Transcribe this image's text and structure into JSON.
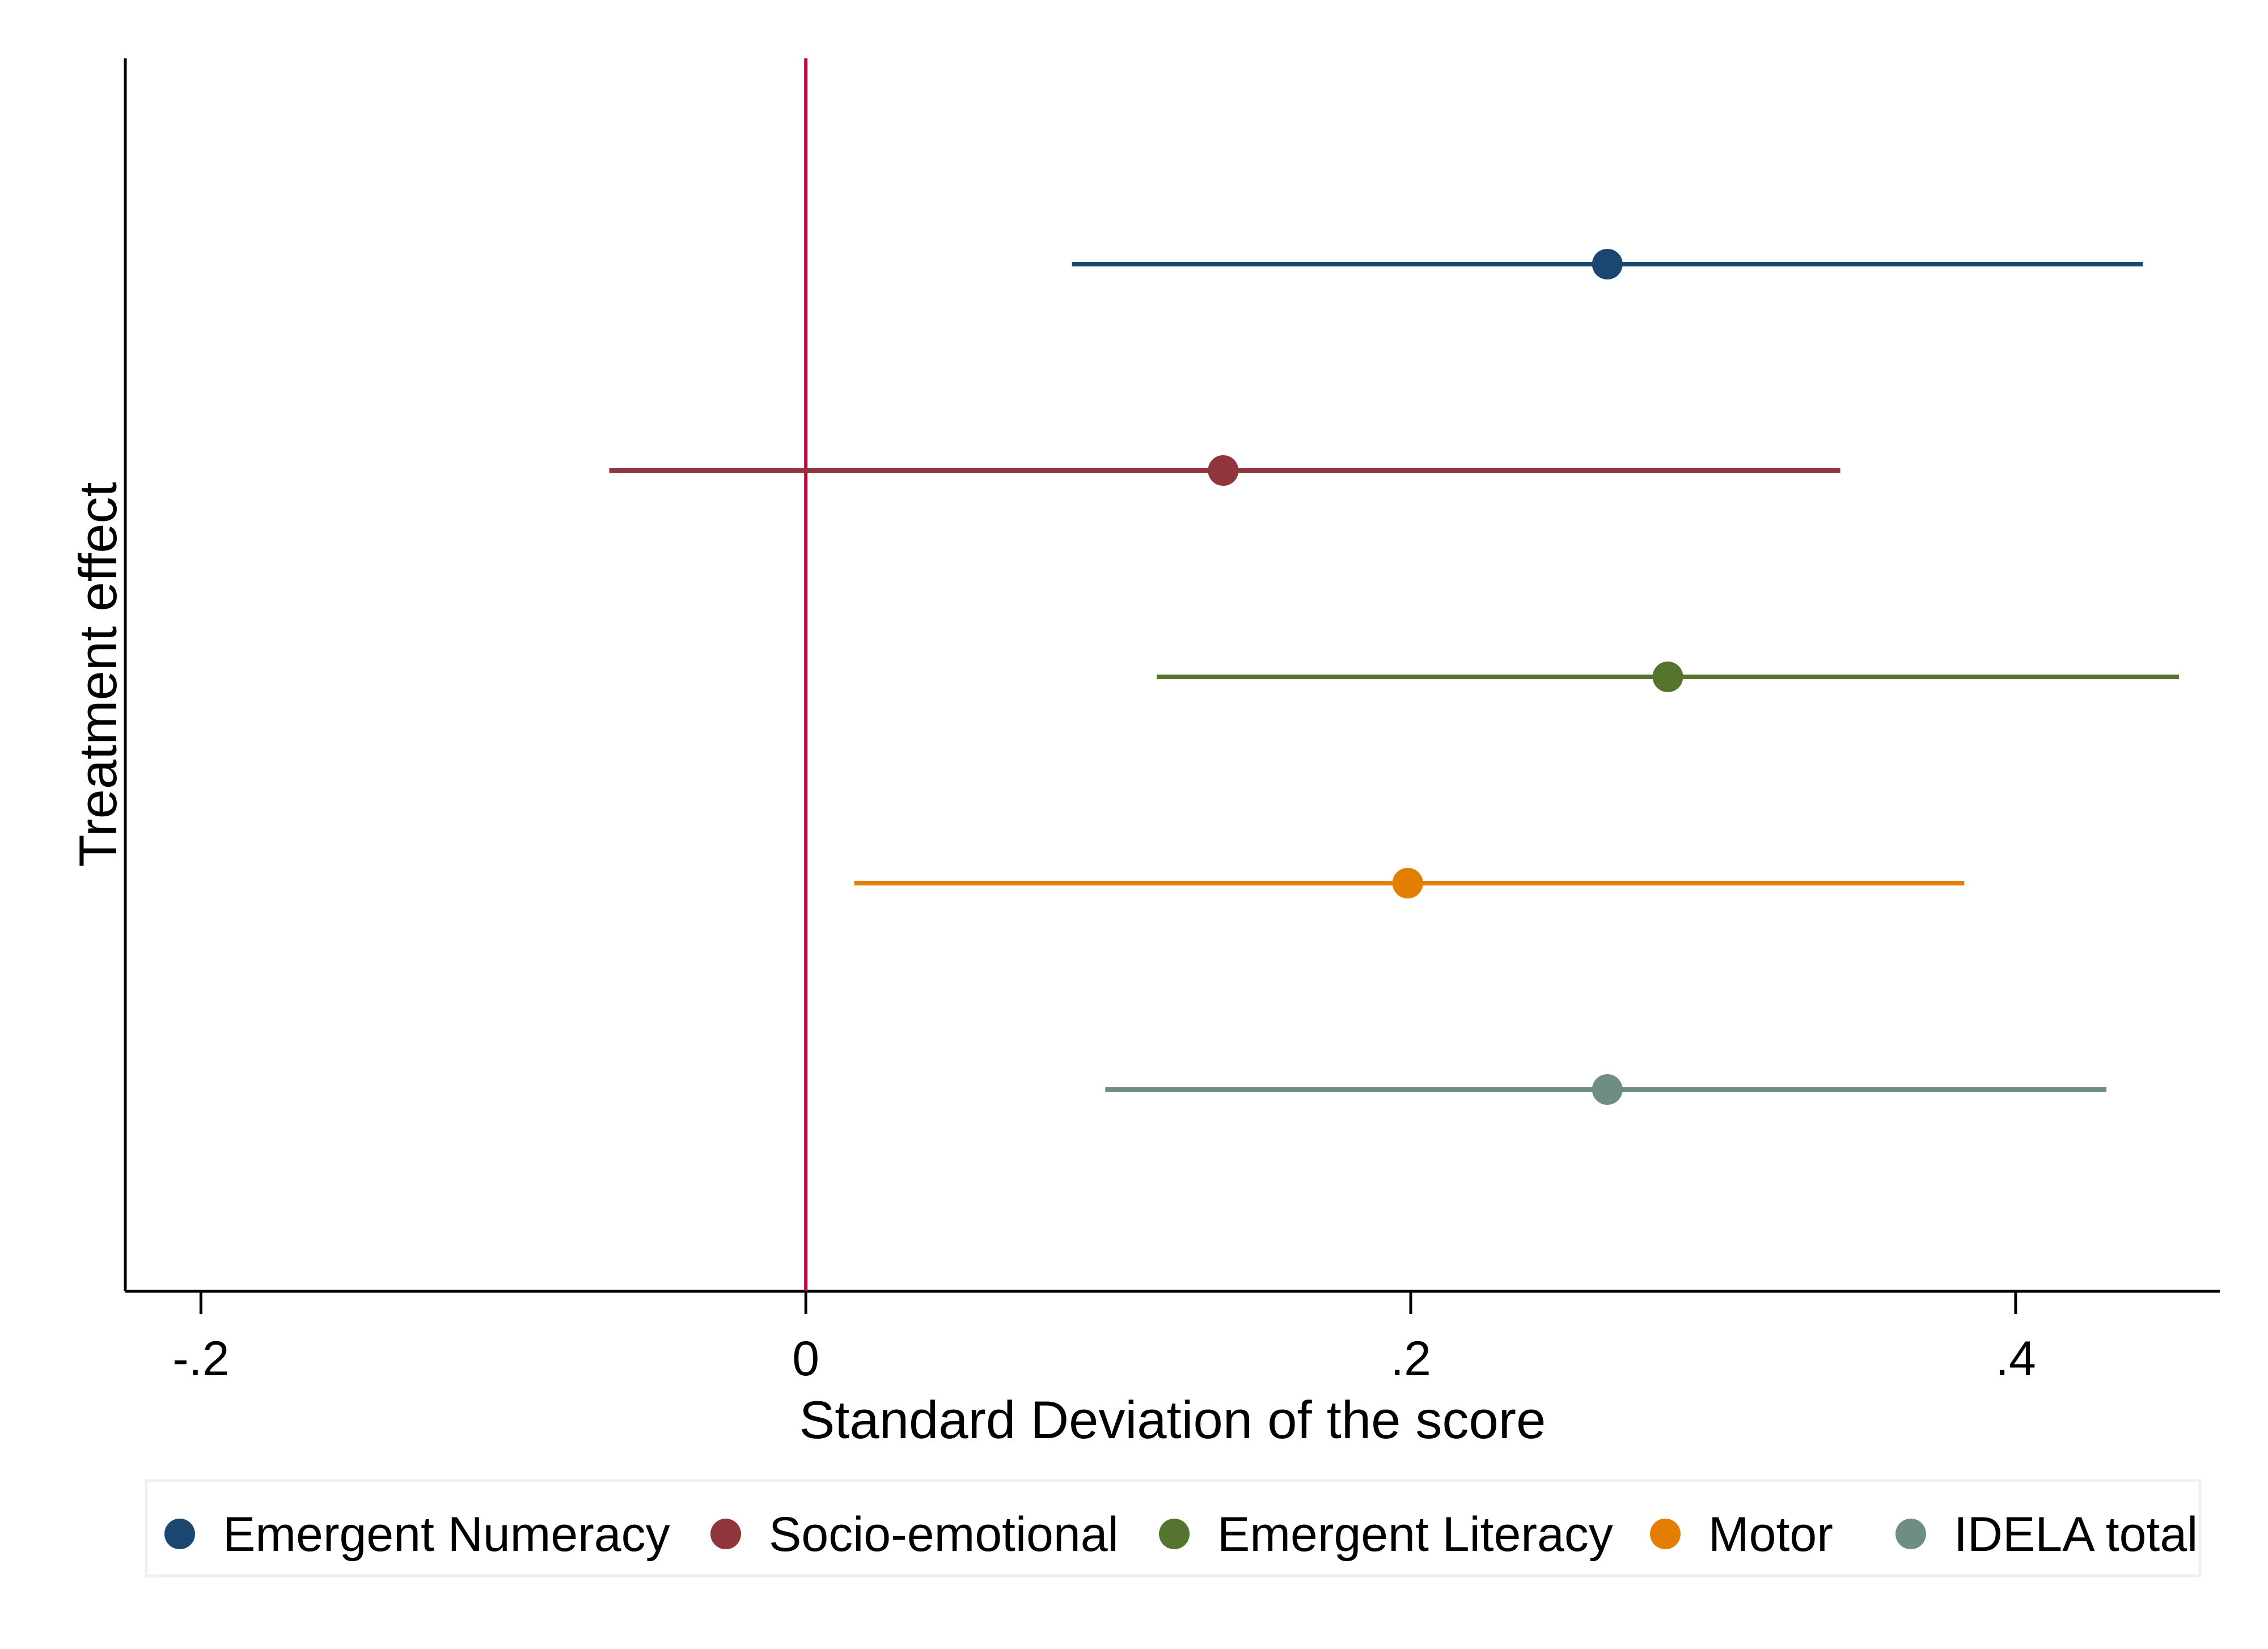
{
  "chart_data": {
    "type": "scatter",
    "subtype": "coefficient-plot",
    "xlabel": "Standard Deviation of the score",
    "ylabel": "Treatment effect",
    "xlim": [
      -0.225,
      0.4675
    ],
    "x_ticks": [
      {
        "value": -0.2,
        "label": "-.2"
      },
      {
        "value": 0,
        "label": "0"
      },
      {
        "value": 0.2,
        "label": ".2"
      },
      {
        "value": 0.4,
        "label": ".4"
      }
    ],
    "reference_line": {
      "x": 0,
      "color": "#c10534"
    },
    "grid": false,
    "legend_position": "bottom",
    "series": [
      {
        "name": "Emergent Numeracy",
        "estimate": 0.265,
        "ci_low": 0.088,
        "ci_high": 0.442,
        "color": "#1a476f"
      },
      {
        "name": "Socio-emotional",
        "estimate": 0.138,
        "ci_low": -0.065,
        "ci_high": 0.342,
        "color": "#90353b"
      },
      {
        "name": "Emergent Literacy",
        "estimate": 0.285,
        "ci_low": 0.116,
        "ci_high": 0.454,
        "color": "#55752f"
      },
      {
        "name": "Motor",
        "estimate": 0.199,
        "ci_low": 0.016,
        "ci_high": 0.383,
        "color": "#e37e00"
      },
      {
        "name": "IDELA total",
        "estimate": 0.265,
        "ci_low": 0.099,
        "ci_high": 0.43,
        "color": "#6e8e84"
      }
    ]
  }
}
